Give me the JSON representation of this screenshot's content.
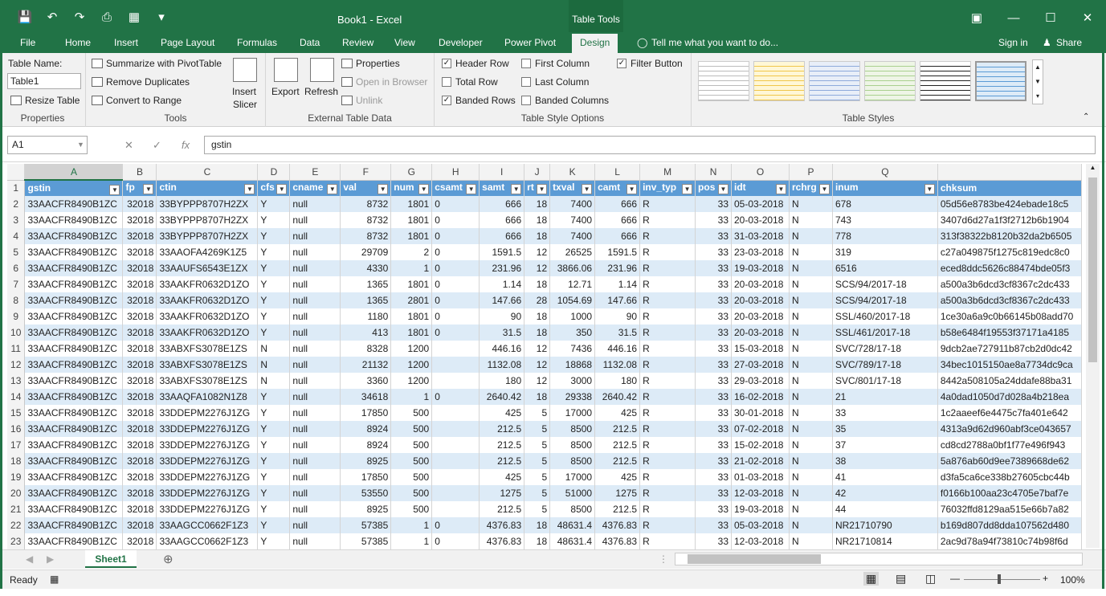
{
  "window": {
    "title": "Book1 - Excel",
    "context": "Table Tools"
  },
  "tabs": [
    "File",
    "Home",
    "Insert",
    "Page Layout",
    "Formulas",
    "Data",
    "Review",
    "View",
    "Developer",
    "Power Pivot",
    "Design"
  ],
  "tell_me": "Tell me what you want to do...",
  "sign_in": "Sign in",
  "share": "Share",
  "ribbon": {
    "properties": {
      "table_name_label": "Table Name:",
      "table_name": "Table1",
      "resize": "Resize Table",
      "label": "Properties"
    },
    "tools": {
      "summarize": "Summarize with PivotTable",
      "remove_dup": "Remove Duplicates",
      "convert": "Convert to Range",
      "insert_slicer_1": "Insert",
      "insert_slicer_2": "Slicer",
      "label": "Tools"
    },
    "external": {
      "export": "Export",
      "refresh": "Refresh",
      "properties": "Properties",
      "open_browser": "Open in Browser",
      "unlink": "Unlink",
      "label": "External Table Data"
    },
    "style_options": {
      "header_row": "Header Row",
      "total_row": "Total Row",
      "banded_rows": "Banded Rows",
      "first_column": "First Column",
      "last_column": "Last Column",
      "banded_columns": "Banded Columns",
      "filter_button": "Filter Button",
      "label": "Table Style Options"
    },
    "styles": {
      "label": "Table Styles"
    }
  },
  "formula": {
    "namebox": "A1",
    "value": "gstin"
  },
  "columns": [
    "A",
    "B",
    "C",
    "D",
    "E",
    "F",
    "G",
    "H",
    "I",
    "J",
    "K",
    "L",
    "M",
    "N",
    "O",
    "P",
    "Q",
    ""
  ],
  "header": [
    "gstin",
    "fp",
    "ctin",
    "cfs",
    "cname",
    "val",
    "num",
    "csamt",
    "samt",
    "rt",
    "txval",
    "camt",
    "inv_typ",
    "pos",
    "idt",
    "rchrg",
    "inum",
    "chksum"
  ],
  "rows": [
    [
      "33AACFR8490B1ZC",
      "32018",
      "33BYPPP8707H2ZX",
      "Y",
      "null",
      "8732",
      "1801",
      "0",
      "666",
      "18",
      "7400",
      "666",
      "R",
      "33",
      "05-03-2018",
      "N",
      "678",
      "05d56e8783be424ebade18c5"
    ],
    [
      "33AACFR8490B1ZC",
      "32018",
      "33BYPPP8707H2ZX",
      "Y",
      "null",
      "8732",
      "1801",
      "0",
      "666",
      "18",
      "7400",
      "666",
      "R",
      "33",
      "20-03-2018",
      "N",
      "743",
      "3407d6d27a1f3f2712b6b1904"
    ],
    [
      "33AACFR8490B1ZC",
      "32018",
      "33BYPPP8707H2ZX",
      "Y",
      "null",
      "8732",
      "1801",
      "0",
      "666",
      "18",
      "7400",
      "666",
      "R",
      "33",
      "31-03-2018",
      "N",
      "778",
      "313f38322b8120b32da2b6505"
    ],
    [
      "33AACFR8490B1ZC",
      "32018",
      "33AAOFA4269K1Z5",
      "Y",
      "null",
      "29709",
      "2",
      "0",
      "1591.5",
      "12",
      "26525",
      "1591.5",
      "R",
      "33",
      "23-03-2018",
      "N",
      "319",
      "c27a049875f1275c819edc8c0"
    ],
    [
      "33AACFR8490B1ZC",
      "32018",
      "33AAUFS6543E1ZX",
      "Y",
      "null",
      "4330",
      "1",
      "0",
      "231.96",
      "12",
      "3866.06",
      "231.96",
      "R",
      "33",
      "19-03-2018",
      "N",
      "6516",
      "eced8ddc5626c88474bde05f3"
    ],
    [
      "33AACFR8490B1ZC",
      "32018",
      "33AAKFR0632D1ZO",
      "Y",
      "null",
      "1365",
      "1801",
      "0",
      "1.14",
      "18",
      "12.71",
      "1.14",
      "R",
      "33",
      "20-03-2018",
      "N",
      "SCS/94/2017-18",
      "a500a3b6dcd3cf8367c2dc433"
    ],
    [
      "33AACFR8490B1ZC",
      "32018",
      "33AAKFR0632D1ZO",
      "Y",
      "null",
      "1365",
      "2801",
      "0",
      "147.66",
      "28",
      "1054.69",
      "147.66",
      "R",
      "33",
      "20-03-2018",
      "N",
      "SCS/94/2017-18",
      "a500a3b6dcd3cf8367c2dc433"
    ],
    [
      "33AACFR8490B1ZC",
      "32018",
      "33AAKFR0632D1ZO",
      "Y",
      "null",
      "1180",
      "1801",
      "0",
      "90",
      "18",
      "1000",
      "90",
      "R",
      "33",
      "20-03-2018",
      "N",
      "SSL/460/2017-18",
      "1ce30a6a9c0b66145b08add70"
    ],
    [
      "33AACFR8490B1ZC",
      "32018",
      "33AAKFR0632D1ZO",
      "Y",
      "null",
      "413",
      "1801",
      "0",
      "31.5",
      "18",
      "350",
      "31.5",
      "R",
      "33",
      "20-03-2018",
      "N",
      "SSL/461/2017-18",
      "b58e6484f19553f37171a4185"
    ],
    [
      "33AACFR8490B1ZC",
      "32018",
      "33ABXFS3078E1ZS",
      "N",
      "null",
      "8328",
      "1200",
      "",
      "446.16",
      "12",
      "7436",
      "446.16",
      "R",
      "33",
      "15-03-2018",
      "N",
      "SVC/728/17-18",
      "9dcb2ae727911b87cb2d0dc42"
    ],
    [
      "33AACFR8490B1ZC",
      "32018",
      "33ABXFS3078E1ZS",
      "N",
      "null",
      "21132",
      "1200",
      "",
      "1132.08",
      "12",
      "18868",
      "1132.08",
      "R",
      "33",
      "27-03-2018",
      "N",
      "SVC/789/17-18",
      "34bec1015150ae8a7734dc9ca"
    ],
    [
      "33AACFR8490B1ZC",
      "32018",
      "33ABXFS3078E1ZS",
      "N",
      "null",
      "3360",
      "1200",
      "",
      "180",
      "12",
      "3000",
      "180",
      "R",
      "33",
      "29-03-2018",
      "N",
      "SVC/801/17-18",
      "8442a508105a24ddafe88ba31"
    ],
    [
      "33AACFR8490B1ZC",
      "32018",
      "33AAQFA1082N1Z8",
      "Y",
      "null",
      "34618",
      "1",
      "0",
      "2640.42",
      "18",
      "29338",
      "2640.42",
      "R",
      "33",
      "16-02-2018",
      "N",
      "21",
      "4a0dad1050d7d028a4b218ea"
    ],
    [
      "33AACFR8490B1ZC",
      "32018",
      "33DDEPM2276J1ZG",
      "Y",
      "null",
      "17850",
      "500",
      "",
      "425",
      "5",
      "17000",
      "425",
      "R",
      "33",
      "30-01-2018",
      "N",
      "33",
      "1c2aaeef6e4475c7fa401e642"
    ],
    [
      "33AACFR8490B1ZC",
      "32018",
      "33DDEPM2276J1ZG",
      "Y",
      "null",
      "8924",
      "500",
      "",
      "212.5",
      "5",
      "8500",
      "212.5",
      "R",
      "33",
      "07-02-2018",
      "N",
      "35",
      "4313a9d62d960abf3ce043657"
    ],
    [
      "33AACFR8490B1ZC",
      "32018",
      "33DDEPM2276J1ZG",
      "Y",
      "null",
      "8924",
      "500",
      "",
      "212.5",
      "5",
      "8500",
      "212.5",
      "R",
      "33",
      "15-02-2018",
      "N",
      "37",
      "cd8cd2788a0bf1f77e496f943"
    ],
    [
      "33AACFR8490B1ZC",
      "32018",
      "33DDEPM2276J1ZG",
      "Y",
      "null",
      "8925",
      "500",
      "",
      "212.5",
      "5",
      "8500",
      "212.5",
      "R",
      "33",
      "21-02-2018",
      "N",
      "38",
      "5a876ab60d9ee7389668de62"
    ],
    [
      "33AACFR8490B1ZC",
      "32018",
      "33DDEPM2276J1ZG",
      "Y",
      "null",
      "17850",
      "500",
      "",
      "425",
      "5",
      "17000",
      "425",
      "R",
      "33",
      "01-03-2018",
      "N",
      "41",
      "d3fa5ca6ce338b27605cbc44b"
    ],
    [
      "33AACFR8490B1ZC",
      "32018",
      "33DDEPM2276J1ZG",
      "Y",
      "null",
      "53550",
      "500",
      "",
      "1275",
      "5",
      "51000",
      "1275",
      "R",
      "33",
      "12-03-2018",
      "N",
      "42",
      "f0166b100aa23c4705e7baf7e"
    ],
    [
      "33AACFR8490B1ZC",
      "32018",
      "33DDEPM2276J1ZG",
      "Y",
      "null",
      "8925",
      "500",
      "",
      "212.5",
      "5",
      "8500",
      "212.5",
      "R",
      "33",
      "19-03-2018",
      "N",
      "44",
      "76032ffd8129aa515e66b7a82"
    ],
    [
      "33AACFR8490B1ZC",
      "32018",
      "33AAGCC0662F1Z3",
      "Y",
      "null",
      "57385",
      "1",
      "0",
      "4376.83",
      "18",
      "48631.4",
      "4376.83",
      "R",
      "33",
      "05-03-2018",
      "N",
      "NR21710790",
      "b169d807dd8dda107562d480"
    ],
    [
      "33AACFR8490B1ZC",
      "32018",
      "33AAGCC0662F1Z3",
      "Y",
      "null",
      "57385",
      "1",
      "0",
      "4376.83",
      "18",
      "48631.4",
      "4376.83",
      "R",
      "33",
      "12-03-2018",
      "N",
      "NR21710814",
      "2ac9d78a94f73810c74b98f6d"
    ]
  ],
  "sheet": "Sheet1",
  "status": {
    "ready": "Ready",
    "zoom": "100%"
  }
}
